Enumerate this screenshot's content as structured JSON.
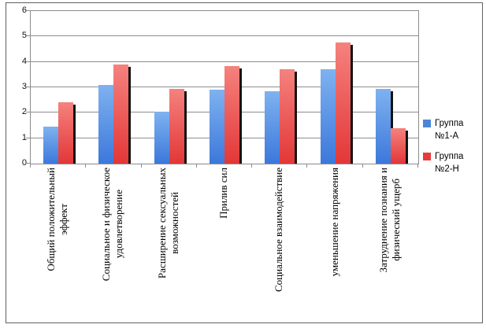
{
  "colors": {
    "background": "#ffffff",
    "frame_border": "#606060",
    "grid": "#8c8c8c",
    "axis": "#8c8c8c",
    "text": "#000000",
    "bar_shadow": "#121212"
  },
  "chart_data": {
    "type": "bar",
    "title": "",
    "xlabel": "",
    "ylabel": "",
    "ylim": [
      0,
      6
    ],
    "yticks": [
      "0",
      "1",
      "2",
      "3",
      "4",
      "5",
      "6"
    ],
    "grid": true,
    "legend_position": "right",
    "categories": [
      "Общий положительный эффект",
      "Социальное и физическое удовлетворение",
      "Расширение сексуальных возможностей",
      "Прилив сил",
      "Социальное взаимодействие",
      "уменьшение напряжения",
      "Затруднение познания и физический ущерб"
    ],
    "categories_lines": [
      [
        "Общий положительный",
        "эффект"
      ],
      [
        "Социальное и физическое",
        "удовлетворение"
      ],
      [
        "Расширение сексуальных",
        "возможностей"
      ],
      [
        "Прилив сил"
      ],
      [
        "Социальное взаимодействие"
      ],
      [
        "уменьшение напряжения"
      ],
      [
        "Затруднение познания и",
        "физический ущерб"
      ]
    ],
    "series": [
      {
        "name": "Группа №1-А",
        "values": [
          1.45,
          3.1,
          2.05,
          2.9,
          2.85,
          3.7,
          2.95
        ],
        "color_top": "#7fb2f0",
        "color_bottom": "#3c78db",
        "legend_color": "#4a86d8"
      },
      {
        "name": "Группа №2-Н",
        "values": [
          2.4,
          3.9,
          2.95,
          3.85,
          3.7,
          4.75,
          1.4
        ],
        "color_top": "#f5827e",
        "color_bottom": "#e23737",
        "legend_color": "#e63c3c"
      }
    ]
  }
}
